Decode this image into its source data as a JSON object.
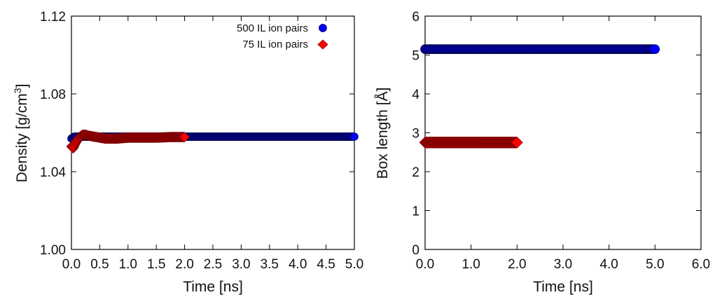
{
  "chart_data": [
    {
      "type": "scatter",
      "xlabel": "Time [ns]",
      "ylabel_main": "Density [g/cm",
      "ylabel_sup": "3",
      "ylabel_close": "]",
      "xlim": [
        0.0,
        5.0
      ],
      "ylim": [
        1.0,
        1.12
      ],
      "xticks": [
        "0.0",
        "0.5",
        "1.0",
        "1.5",
        "2.0",
        "2.5",
        "3.0",
        "3.5",
        "4.0",
        "4.5",
        "5.0"
      ],
      "yticks": [
        "1.00",
        "1.04",
        "1.08",
        "1.12"
      ],
      "legend_position": "top-right",
      "series": [
        {
          "name": "500 IL ion pairs",
          "color": "#0000ff",
          "marker": "circle",
          "x": [
            0.0,
            0.05,
            0.1,
            0.2,
            0.3,
            0.5,
            0.75,
            1.0,
            1.5,
            2.0,
            2.5,
            3.0,
            3.5,
            4.0,
            4.5,
            5.0
          ],
          "y": [
            1.057,
            1.058,
            1.058,
            1.058,
            1.058,
            1.058,
            1.058,
            1.058,
            1.058,
            1.058,
            1.058,
            1.058,
            1.058,
            1.058,
            1.058,
            1.058
          ]
        },
        {
          "name": "75 IL ion pairs",
          "color": "#ff0000",
          "marker": "diamond",
          "x": [
            0.0,
            0.03,
            0.06,
            0.1,
            0.15,
            0.2,
            0.25,
            0.3,
            0.4,
            0.5,
            0.6,
            0.8,
            1.0,
            1.25,
            1.5,
            1.75,
            2.0
          ],
          "y": [
            1.053,
            1.052,
            1.054,
            1.056,
            1.058,
            1.059,
            1.059,
            1.0585,
            1.058,
            1.0575,
            1.057,
            1.057,
            1.0575,
            1.0575,
            1.0575,
            1.0578,
            1.0578
          ]
        }
      ]
    },
    {
      "type": "scatter",
      "xlabel": "Time [ns]",
      "ylabel": "Box length [Å]",
      "xlim": [
        0.0,
        6.0
      ],
      "ylim": [
        0,
        6
      ],
      "xticks": [
        "0.0",
        "1.0",
        "2.0",
        "3.0",
        "4.0",
        "5.0",
        "6.0"
      ],
      "yticks": [
        "0",
        "1",
        "2",
        "3",
        "4",
        "5",
        "6"
      ],
      "series": [
        {
          "color": "#0000ff",
          "marker": "circle",
          "x": [
            0.0,
            0.5,
            1.0,
            1.5,
            2.0,
            2.5,
            3.0,
            3.5,
            4.0,
            4.5,
            5.0
          ],
          "y": [
            5.15,
            5.15,
            5.15,
            5.15,
            5.15,
            5.15,
            5.15,
            5.15,
            5.15,
            5.15,
            5.15
          ]
        },
        {
          "color": "#ff0000",
          "marker": "diamond",
          "x": [
            0.0,
            0.25,
            0.5,
            0.75,
            1.0,
            1.25,
            1.5,
            1.75,
            2.0
          ],
          "y": [
            2.75,
            2.75,
            2.75,
            2.75,
            2.75,
            2.75,
            2.75,
            2.75,
            2.75
          ]
        }
      ]
    }
  ]
}
